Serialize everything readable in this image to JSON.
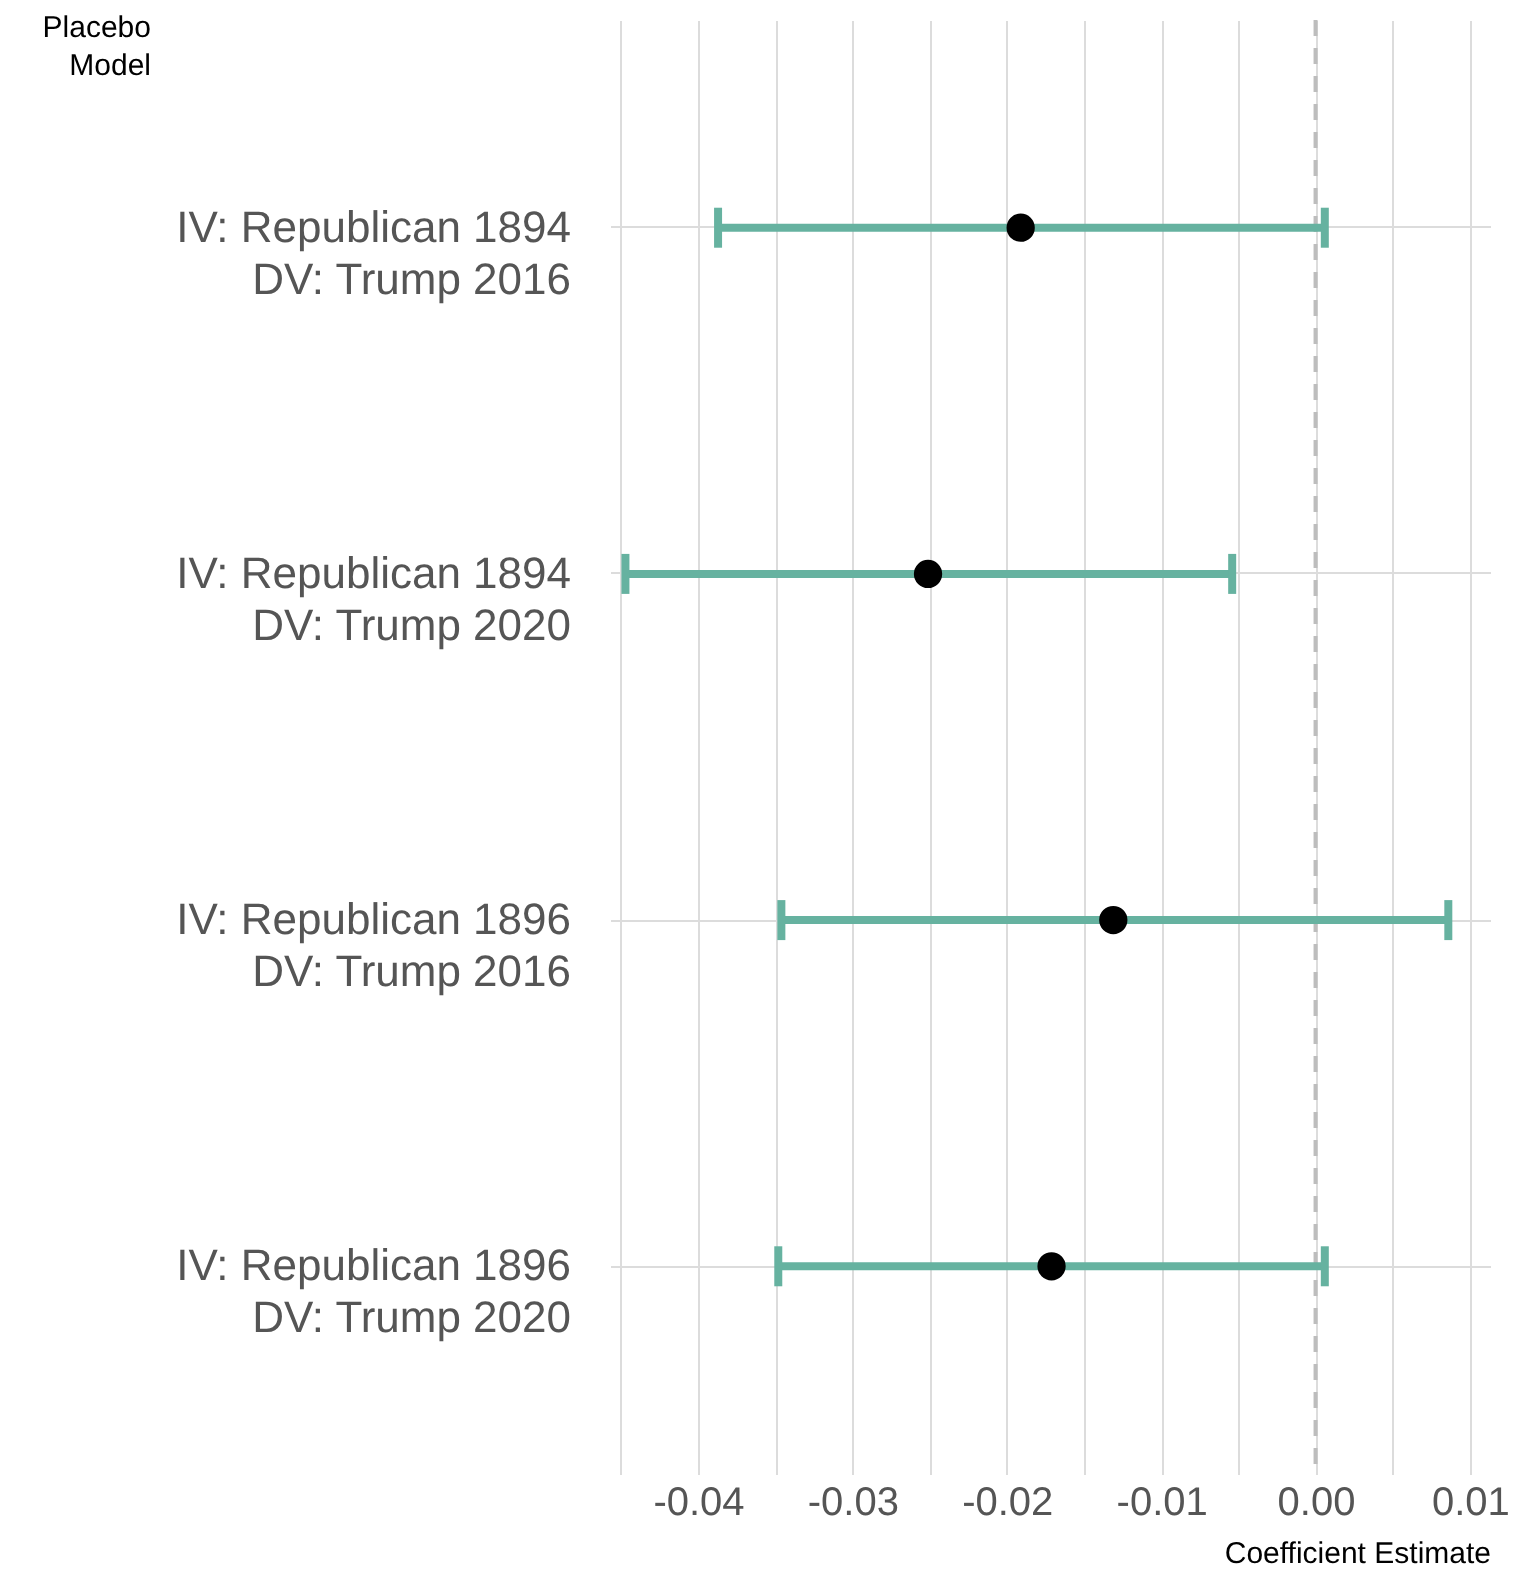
{
  "chart_data": {
    "type": "scatter",
    "orientation": "horizontal",
    "xlabel": "Coefficient Estimate",
    "ylabel": "Placebo\nModel",
    "categories": [
      "IV: Republican 1894\nDV: Trump 2016",
      "IV: Republican 1894\nDV: Trump 2020",
      "IV: Republican 1896\nDV: Trump 2016",
      "IV: Republican 1896\nDV: Trump 2020"
    ],
    "values": [
      -0.0191,
      -0.0251,
      -0.0131,
      -0.0171
    ],
    "errors": [
      [
        -0.0387,
        0.0006
      ],
      [
        -0.0447,
        -0.0054
      ],
      [
        -0.0346,
        0.0086
      ],
      [
        -0.0348,
        0.0006
      ]
    ],
    "color": "#000000",
    "marker": "circle",
    "xlim": [
      -0.0457,
      0.0113
    ],
    "xticks": [
      {
        "value": -0.045,
        "label": null
      },
      -0.04,
      {
        "value": -0.035,
        "label": null
      },
      -0.03,
      {
        "value": -0.025,
        "label": null
      },
      -0.02,
      {
        "value": -0.015,
        "label": null
      },
      -0.01,
      {
        "value": -0.005,
        "label": null
      },
      {
        "value": 0,
        "label": "0.00"
      },
      {
        "value": 0.005,
        "label": null
      },
      0.01
    ],
    "grid": true,
    "ref_lines": [
      {
        "axis": "x",
        "value": 0,
        "color": "#bdbdbd",
        "line_style": "dashed"
      }
    ]
  }
}
